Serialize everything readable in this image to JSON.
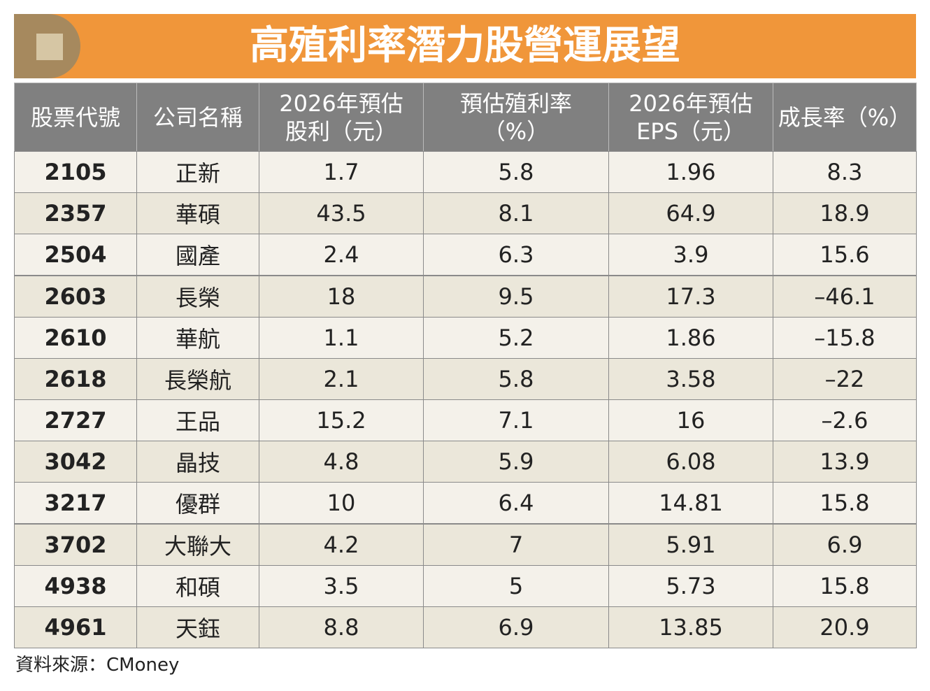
{
  "header": {
    "title": "高殖利率潛力股營運展望"
  },
  "table": {
    "columns": [
      [
        "股票代號"
      ],
      [
        "公司名稱"
      ],
      [
        "2026年預估",
        "股利（元）"
      ],
      [
        "預估殖利率",
        "（%）"
      ],
      [
        "2026年預估",
        "EPS（元）"
      ],
      [
        "成長率（%）"
      ]
    ],
    "rows": [
      [
        "2105",
        "正新",
        "1.7",
        "5.8",
        "1.96",
        "8.3"
      ],
      [
        "2357",
        "華碩",
        "43.5",
        "8.1",
        "64.9",
        "18.9"
      ],
      [
        "2504",
        "國產",
        "2.4",
        "6.3",
        "3.9",
        "15.6"
      ],
      [
        "2603",
        "長榮",
        "18",
        "9.5",
        "17.3",
        "–46.1"
      ],
      [
        "2610",
        "華航",
        "1.1",
        "5.2",
        "1.86",
        "–15.8"
      ],
      [
        "2618",
        "長榮航",
        "2.1",
        "5.8",
        "3.58",
        "–22"
      ],
      [
        "2727",
        "王品",
        "15.2",
        "7.1",
        "16",
        "–2.6"
      ],
      [
        "3042",
        "晶技",
        "4.8",
        "5.9",
        "6.08",
        "13.9"
      ],
      [
        "3217",
        "優群",
        "10",
        "6.4",
        "14.81",
        "15.8"
      ],
      [
        "3702",
        "大聯大",
        "4.2",
        "7",
        "5.91",
        "6.9"
      ],
      [
        "4938",
        "和碩",
        "3.5",
        "5",
        "5.73",
        "15.8"
      ],
      [
        "4961",
        "天鈺",
        "8.8",
        "6.9",
        "13.85",
        "20.9"
      ]
    ]
  },
  "footer": {
    "source": "資料來源：CMoney"
  }
}
